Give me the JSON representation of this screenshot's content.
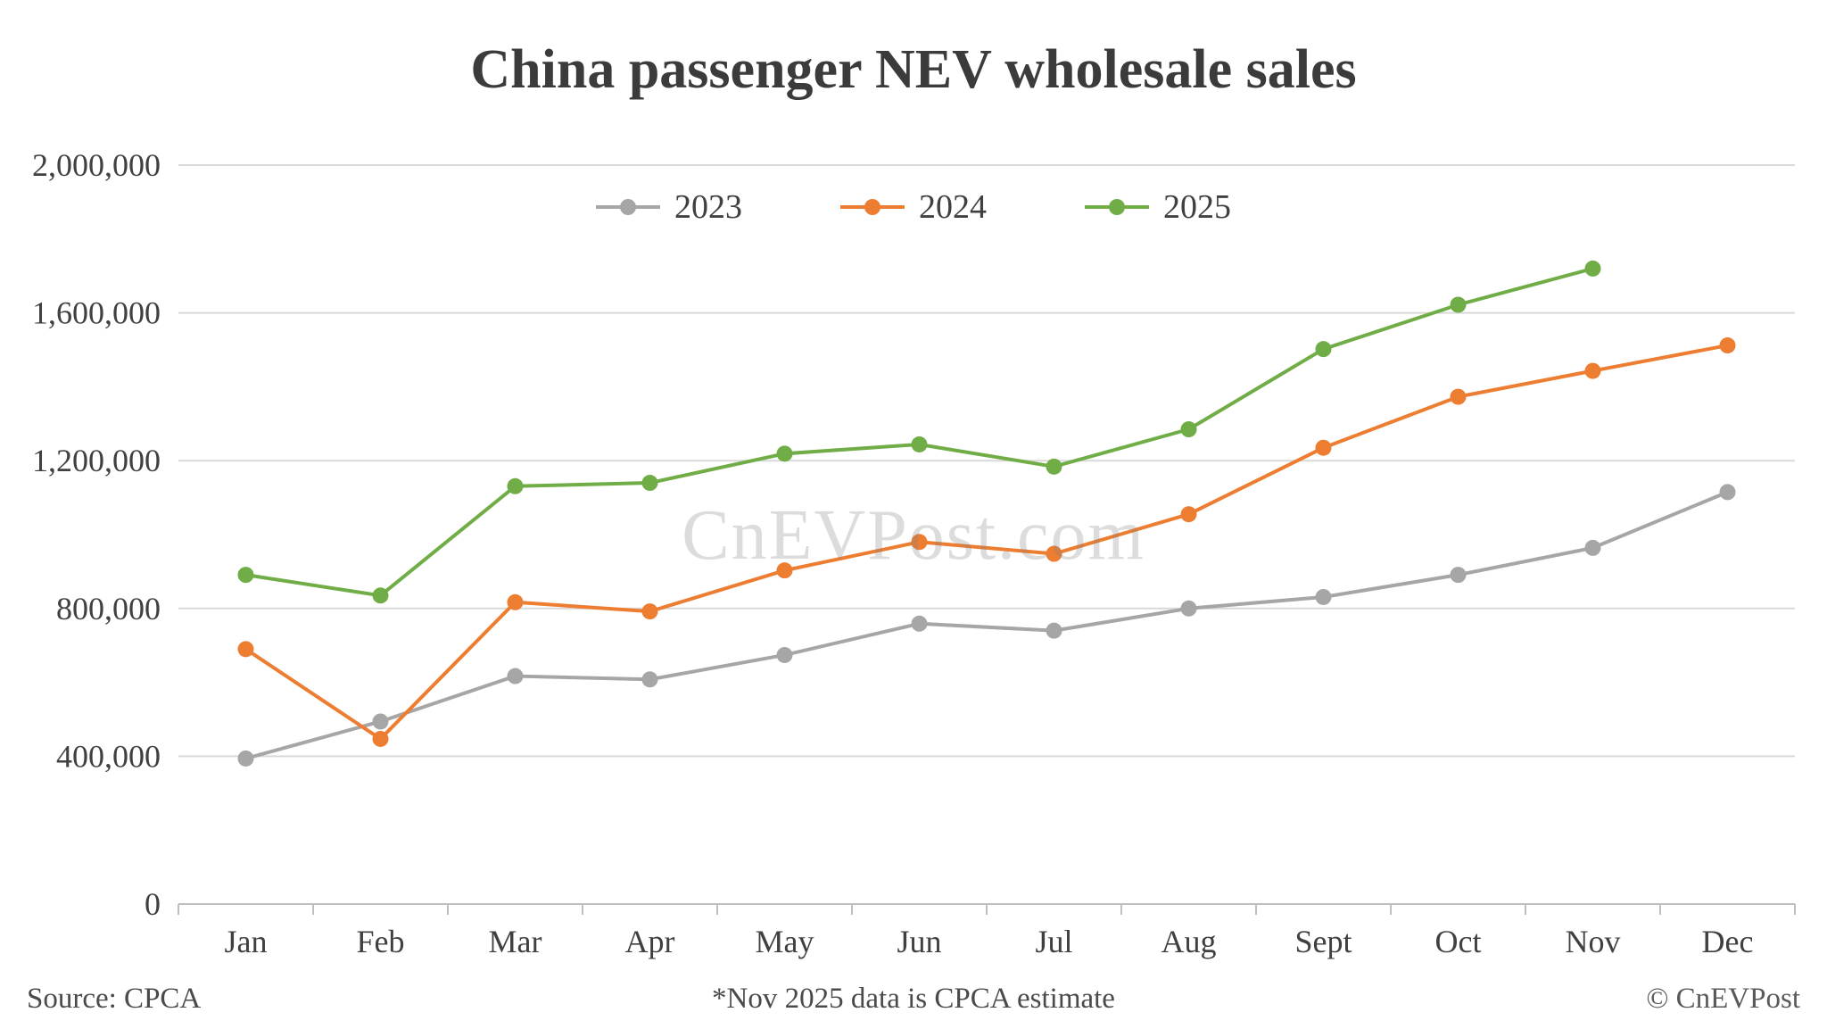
{
  "title": "China passenger NEV wholesale sales",
  "watermark": "CnEVPost.com",
  "footer": {
    "source": "Source: CPCA",
    "note": "*Nov 2025 data is CPCA estimate",
    "copyright": "© CnEVPost"
  },
  "colors": {
    "series_2023": "#a6a6a6",
    "series_2024": "#ed7d31",
    "series_2025": "#70ad47",
    "gridline": "#d9d9d9",
    "axis": "#bfbfbf",
    "text": "#404040"
  },
  "chart_data": {
    "type": "line",
    "title": "China passenger NEV wholesale sales",
    "categories": [
      "Jan",
      "Feb",
      "Mar",
      "Apr",
      "May",
      "Jun",
      "Jul",
      "Aug",
      "Sept",
      "Oct",
      "Nov",
      "Dec"
    ],
    "series": [
      {
        "name": "2023",
        "color": "#a6a6a6",
        "values": [
          394000,
          494000,
          617000,
          608000,
          674000,
          759000,
          740000,
          800000,
          831000,
          891000,
          964000,
          1115000
        ]
      },
      {
        "name": "2024",
        "color": "#ed7d31",
        "values": [
          690000,
          447000,
          817000,
          792000,
          903000,
          980000,
          948000,
          1055000,
          1235000,
          1373000,
          1443000,
          1512000
        ]
      },
      {
        "name": "2025",
        "color": "#70ad47",
        "values": [
          891000,
          835000,
          1131000,
          1140000,
          1219000,
          1244000,
          1184000,
          1285000,
          1502000,
          1622000,
          1720000,
          null
        ]
      }
    ],
    "ylim": [
      0,
      2000000
    ],
    "ytick_step": 400000,
    "ytick_labels": [
      "0",
      "400,000",
      "800,000",
      "1,200,000",
      "1,600,000",
      "2,000,000"
    ],
    "grid": "horizontal",
    "legend_position": "top-center",
    "xlabel": "",
    "ylabel": ""
  }
}
